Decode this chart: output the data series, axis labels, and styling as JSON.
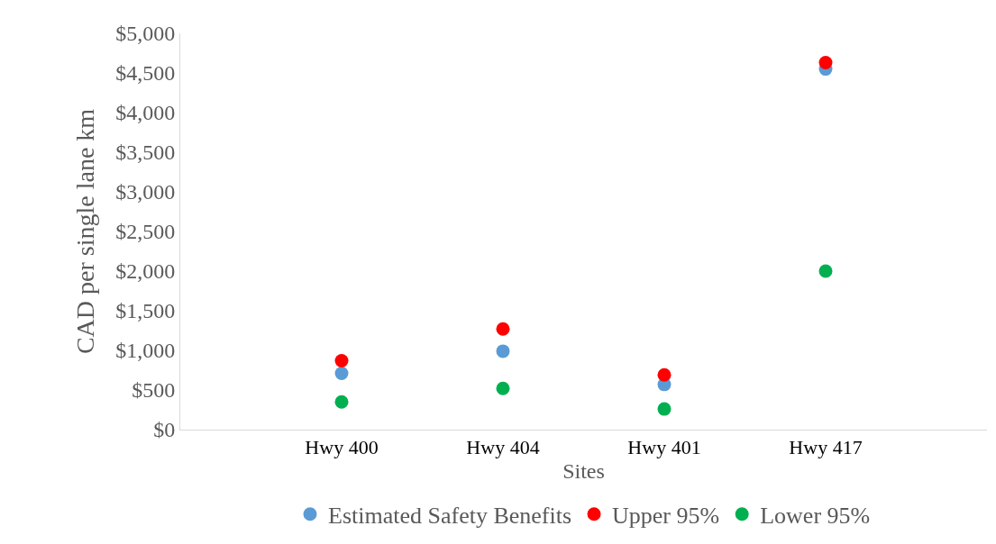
{
  "chart_data": {
    "type": "scatter",
    "xlabel": "Sites",
    "ylabel": "CAD per single lane km",
    "categories": [
      "Hwy 400",
      "Hwy 404",
      "Hwy 401",
      "Hwy 417"
    ],
    "series": [
      {
        "name": "Estimated Safety Benefits",
        "color": "#5b9bd5",
        "values": [
          710,
          990,
          570,
          4550
        ]
      },
      {
        "name": "Upper 95%",
        "color": "#ff0000",
        "values": [
          870,
          1270,
          690,
          4630
        ]
      },
      {
        "name": "Lower 95%",
        "color": "#00b050",
        "values": [
          350,
          520,
          260,
          2000
        ]
      }
    ],
    "ylim": [
      0,
      5000
    ],
    "yticks": [
      {
        "value": 0,
        "label": "$0"
      },
      {
        "value": 500,
        "label": "$500"
      },
      {
        "value": 1000,
        "label": "$1,000"
      },
      {
        "value": 1500,
        "label": "$1,500"
      },
      {
        "value": 2000,
        "label": "$2,000"
      },
      {
        "value": 2500,
        "label": "$2,500"
      },
      {
        "value": 3000,
        "label": "$3,000"
      },
      {
        "value": 3500,
        "label": "$3,500"
      },
      {
        "value": 4000,
        "label": "$4,000"
      },
      {
        "value": 4500,
        "label": "$4,500"
      },
      {
        "value": 5000,
        "label": "$5,000"
      }
    ],
    "grid": false,
    "legend": "bottom",
    "marker": "circle"
  }
}
